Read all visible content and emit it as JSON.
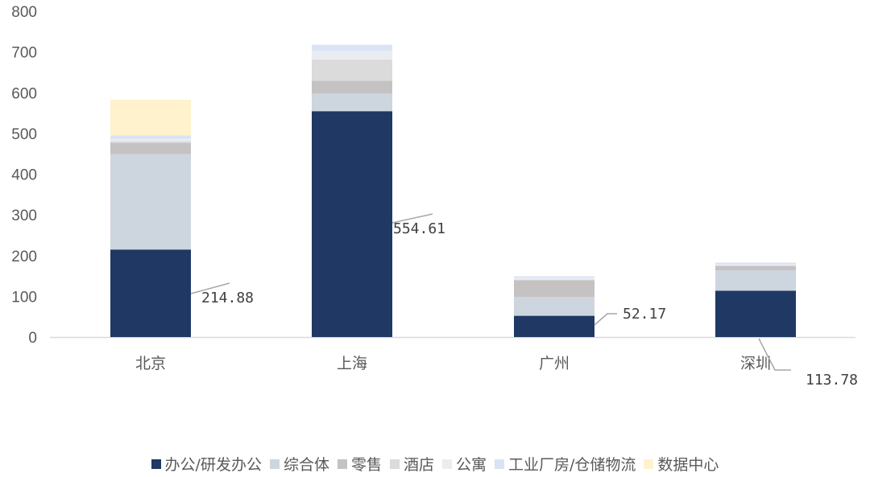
{
  "chart_data": {
    "type": "bar",
    "stacked": true,
    "categories": [
      "北京",
      "上海",
      "广州",
      "深圳"
    ],
    "ylim": [
      0,
      800
    ],
    "yticks": [
      0,
      100,
      200,
      300,
      400,
      500,
      600,
      700,
      800
    ],
    "grid": false,
    "legend_position": "bottom",
    "series": [
      {
        "name": "办公/研发办公",
        "color": "#1f3864",
        "values": [
          214.88,
          554.61,
          52.17,
          113.78
        ]
      },
      {
        "name": "综合体",
        "color": "#cdd5de",
        "values": [
          234,
          44,
          46,
          50
        ]
      },
      {
        "name": "零售",
        "color": "#c4c2c3",
        "values": [
          28,
          31,
          41,
          11
        ]
      },
      {
        "name": "酒店",
        "color": "#dcdbdc",
        "values": [
          4,
          52,
          2,
          0
        ]
      },
      {
        "name": "公寓",
        "color": "#e9edf2",
        "values": [
          6,
          21,
          5,
          4
        ]
      },
      {
        "name": "工业厂房/仓储物流",
        "color": "#dae3f3",
        "values": [
          8,
          15,
          3,
          4
        ]
      },
      {
        "name": "数据中心",
        "color": "#fff2cc",
        "values": [
          88,
          0,
          0,
          0
        ]
      }
    ],
    "data_labels": [
      "214.88",
      "554.61",
      "52.17",
      "113.78"
    ]
  }
}
